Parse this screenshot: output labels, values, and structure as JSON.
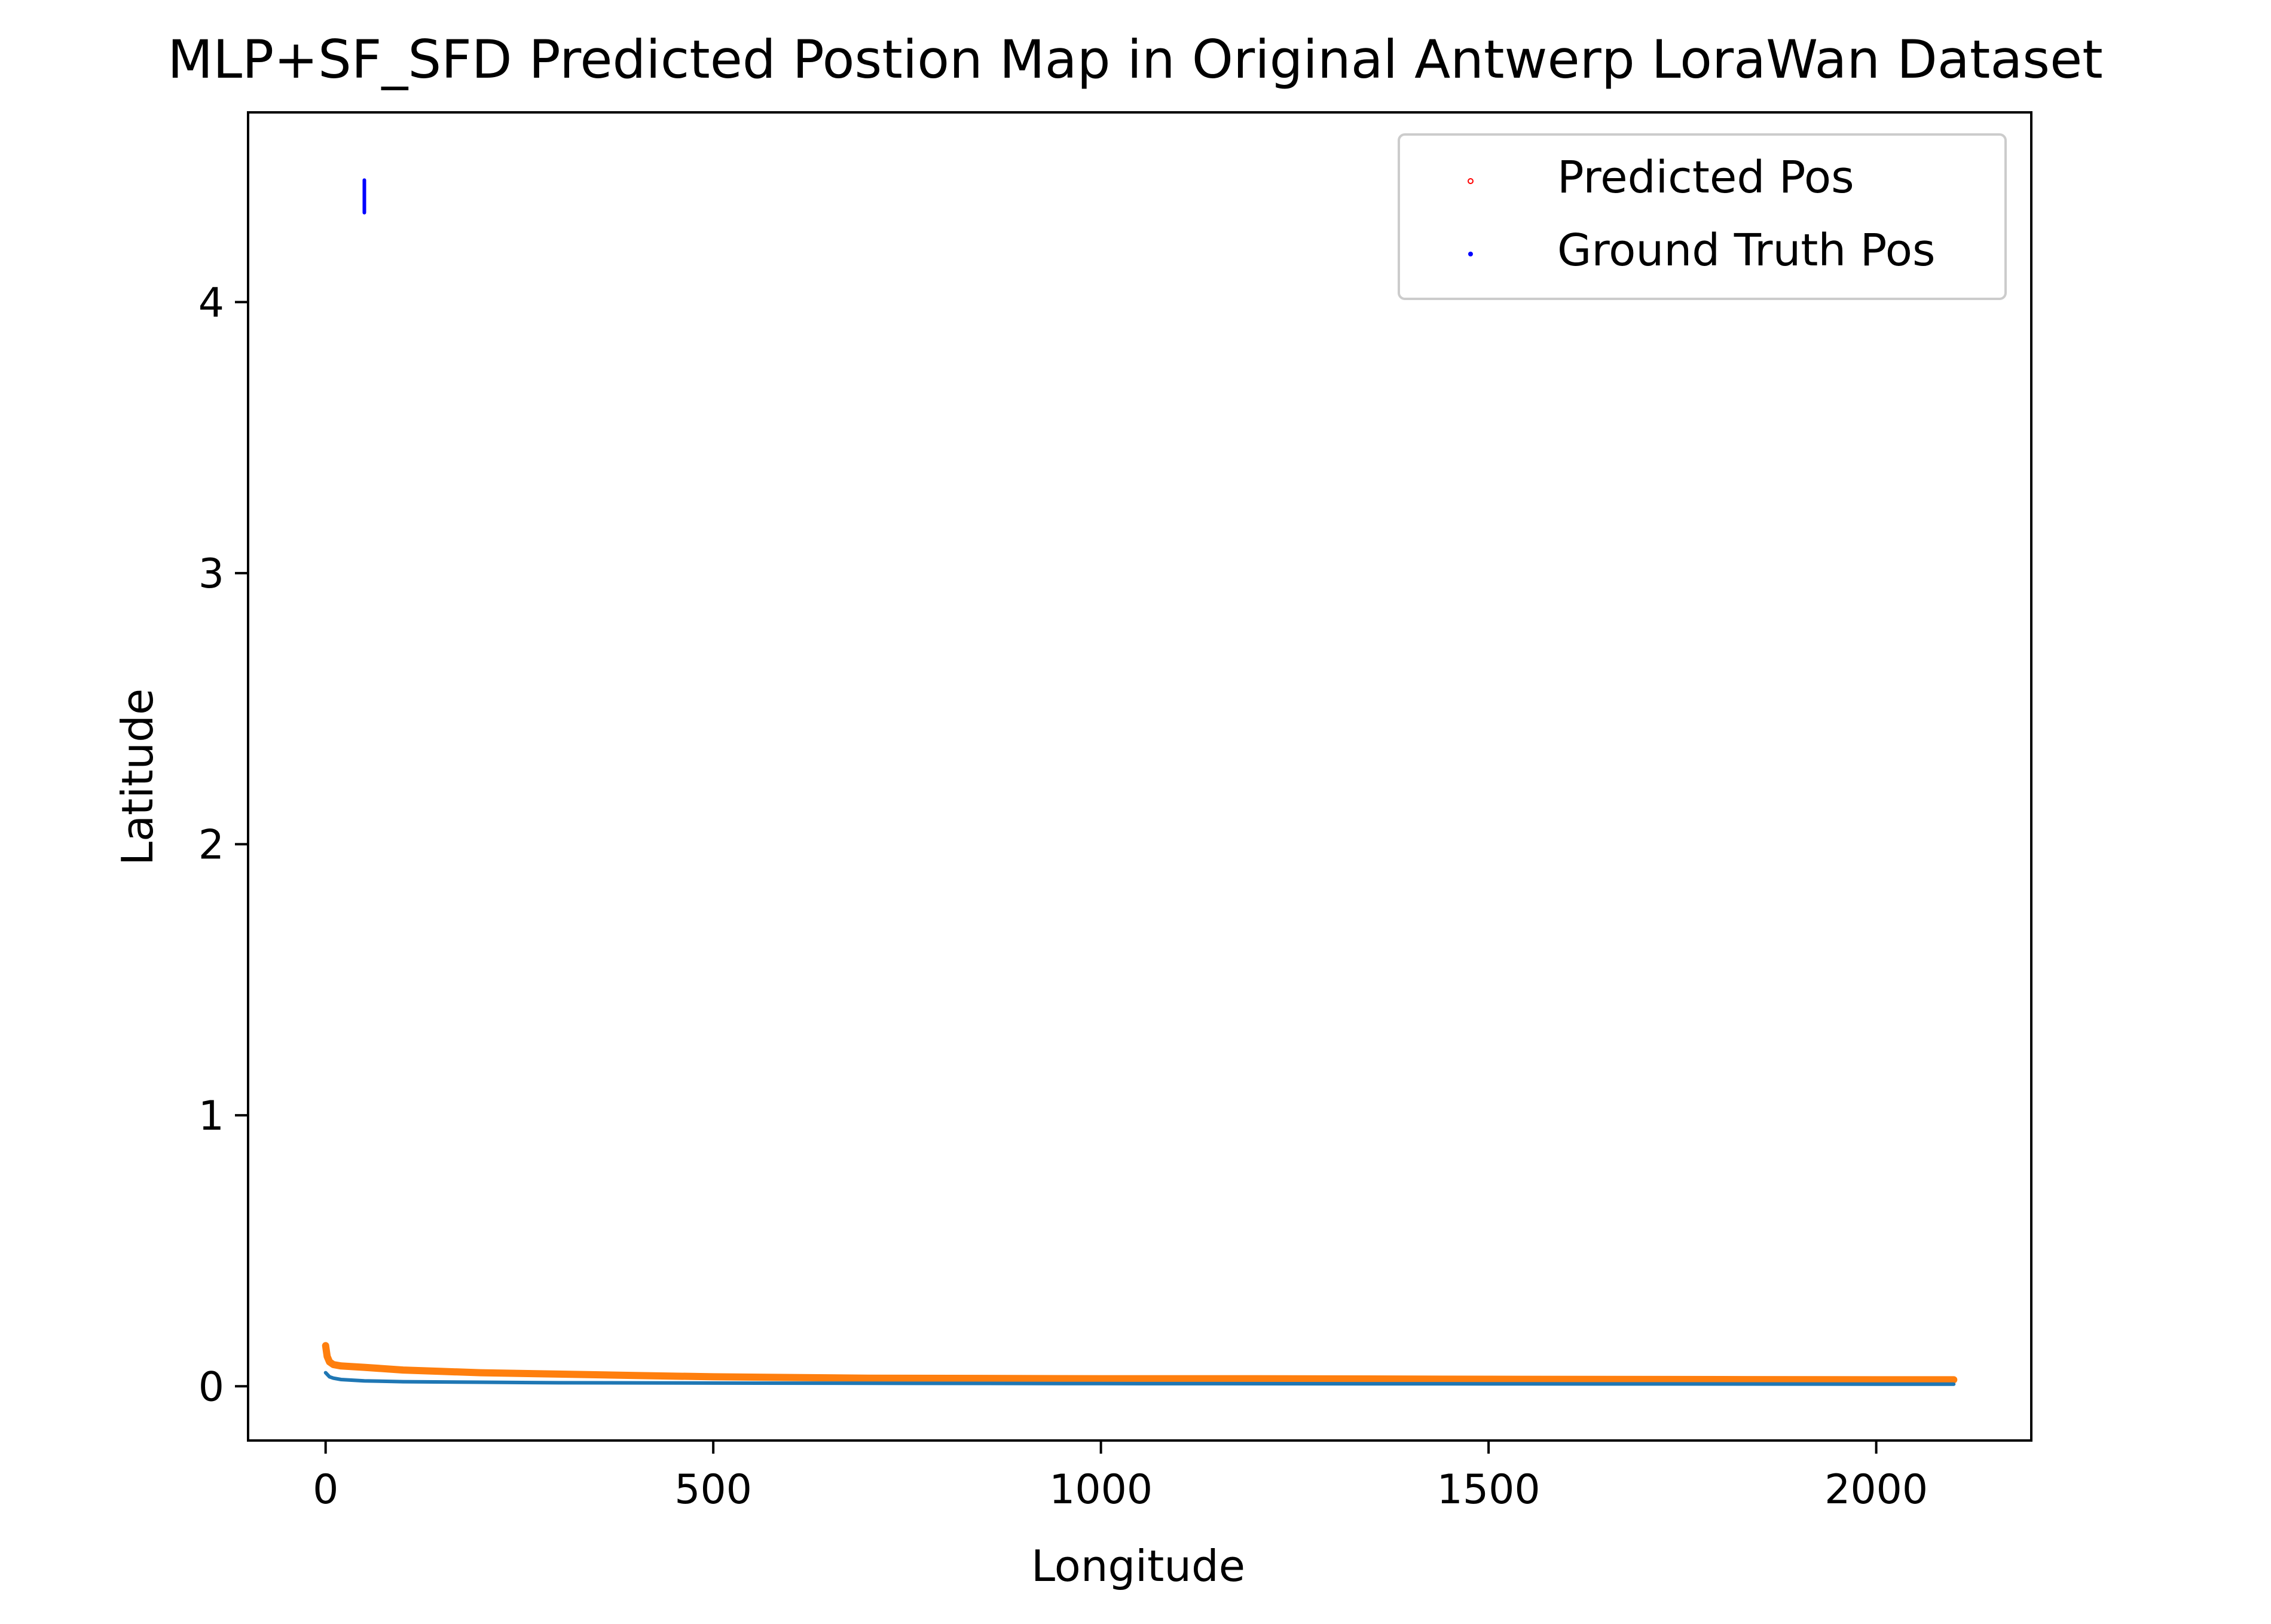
{
  "chart_data": {
    "type": "line",
    "title": "MLP+SF_SFD Predicted Postion Map in Original Antwerp LoraWan Dataset",
    "xlabel": "Longitude",
    "ylabel": "Latitude",
    "xlim": [
      -100,
      2200
    ],
    "ylim": [
      -0.2,
      4.7
    ],
    "xticks": [
      0,
      500,
      1000,
      1500,
      2000
    ],
    "yticks": [
      0,
      1,
      2,
      3,
      4
    ],
    "grid": false,
    "legend_position": "top-right",
    "legend": [
      {
        "label": "Predicted Pos",
        "color": "#ff0000",
        "marker": "ring"
      },
      {
        "label": "Ground Truth Pos",
        "color": "#0000ff",
        "marker": "dot"
      }
    ],
    "series": [
      {
        "color": "#ff7f0e",
        "x": [
          0,
          2,
          5,
          10,
          20,
          50,
          100,
          150,
          200,
          300,
          400,
          500,
          700,
          1000,
          1200,
          1500,
          1800,
          2000,
          2100
        ],
        "y": [
          0.15,
          0.11,
          0.09,
          0.08,
          0.075,
          0.07,
          0.06,
          0.055,
          0.05,
          0.045,
          0.04,
          0.035,
          0.03,
          0.028,
          0.028,
          0.026,
          0.025,
          0.024,
          0.024
        ]
      },
      {
        "color": "#1f77b4",
        "x": [
          0,
          5,
          10,
          20,
          50,
          100,
          200,
          300,
          500,
          1000,
          1500,
          2000,
          2100
        ],
        "y": [
          0.05,
          0.035,
          0.03,
          0.025,
          0.02,
          0.017,
          0.015,
          0.013,
          0.012,
          0.01,
          0.009,
          0.008,
          0.008
        ]
      },
      {
        "color": "#0000ff",
        "x": [
          50,
          50
        ],
        "y": [
          4.33,
          4.45
        ]
      }
    ]
  }
}
